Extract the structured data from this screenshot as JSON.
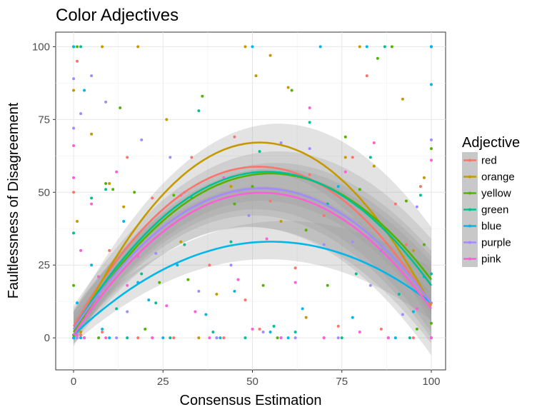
{
  "chart_data": {
    "type": "scatter",
    "title": "Color Adjectives",
    "xlabel": "Consensus Estimation",
    "ylabel": "Faultlessness of Disagreement",
    "xlim": [
      -5,
      104
    ],
    "ylim": [
      -11,
      105
    ],
    "xticks": [
      0,
      25,
      50,
      75,
      100
    ],
    "yticks": [
      0,
      25,
      50,
      75,
      100
    ],
    "grid": true,
    "legend": {
      "title": "Adjective",
      "position": "right"
    },
    "series": [
      {
        "name": "red",
        "color": "#F8766D",
        "fit": {
          "a": 4,
          "b": 2.12,
          "c": -0.0205
        },
        "band": [
          [
            0,
            0,
            10
          ],
          [
            50,
            38,
            56
          ],
          [
            100,
            -2,
            26
          ]
        ],
        "points": [
          [
            0,
            0
          ],
          [
            0,
            50
          ],
          [
            1,
            95
          ],
          [
            2,
            1
          ],
          [
            3,
            0
          ],
          [
            5,
            10
          ],
          [
            8,
            2
          ],
          [
            10,
            30
          ],
          [
            15,
            62
          ],
          [
            18,
            0
          ],
          [
            22,
            48
          ],
          [
            28,
            0
          ],
          [
            33,
            62
          ],
          [
            38,
            25
          ],
          [
            42,
            0
          ],
          [
            45,
            69
          ],
          [
            48,
            13
          ],
          [
            52,
            3
          ],
          [
            55,
            47
          ],
          [
            58,
            0
          ],
          [
            62,
            24
          ],
          [
            66,
            56
          ],
          [
            70,
            42
          ],
          [
            74,
            4
          ],
          [
            78,
            62
          ],
          [
            82,
            90
          ],
          [
            86,
            3
          ],
          [
            90,
            46
          ],
          [
            93,
            32
          ],
          [
            95,
            0
          ],
          [
            97,
            52
          ],
          [
            100,
            100
          ],
          [
            100,
            12
          ],
          [
            100,
            0
          ]
        ]
      },
      {
        "name": "orange",
        "color": "#C49A00",
        "fit": {
          "a": 1,
          "b": 2.54,
          "c": -0.0244
        },
        "band": [
          [
            0,
            -3,
            9
          ],
          [
            52,
            57,
            73
          ],
          [
            100,
            5,
            38
          ]
        ],
        "points": [
          [
            0,
            100
          ],
          [
            0,
            85
          ],
          [
            1,
            40
          ],
          [
            2,
            2
          ],
          [
            3,
            0
          ],
          [
            5,
            70
          ],
          [
            8,
            100
          ],
          [
            10,
            53
          ],
          [
            14,
            45
          ],
          [
            18,
            100
          ],
          [
            22,
            0
          ],
          [
            26,
            75
          ],
          [
            30,
            33
          ],
          [
            35,
            0
          ],
          [
            40,
            15
          ],
          [
            44,
            52
          ],
          [
            48,
            100
          ],
          [
            51,
            90
          ],
          [
            55,
            97
          ],
          [
            58,
            40
          ],
          [
            60,
            86
          ],
          [
            65,
            7
          ],
          [
            70,
            0
          ],
          [
            76,
            62
          ],
          [
            80,
            100
          ],
          [
            84,
            59
          ],
          [
            88,
            0
          ],
          [
            92,
            82
          ],
          [
            95,
            30
          ],
          [
            98,
            55
          ],
          [
            100,
            100
          ],
          [
            100,
            0
          ]
        ]
      },
      {
        "name": "yellow",
        "color": "#53B400",
        "fit": {
          "a": 2,
          "b": 1.98,
          "c": -0.018
        },
        "band": [
          [
            0,
            -1,
            11
          ],
          [
            55,
            47,
            64
          ],
          [
            100,
            8,
            34
          ]
        ],
        "points": [
          [
            0,
            1
          ],
          [
            0,
            18
          ],
          [
            1,
            100
          ],
          [
            2,
            0
          ],
          [
            3,
            7
          ],
          [
            5,
            13
          ],
          [
            7,
            0
          ],
          [
            9,
            53
          ],
          [
            11,
            51
          ],
          [
            13,
            79
          ],
          [
            17,
            50
          ],
          [
            20,
            3
          ],
          [
            24,
            19
          ],
          [
            28,
            49
          ],
          [
            32,
            20
          ],
          [
            36,
            83
          ],
          [
            40,
            0
          ],
          [
            45,
            46
          ],
          [
            50,
            52
          ],
          [
            53,
            18
          ],
          [
            57,
            0
          ],
          [
            61,
            85
          ],
          [
            65,
            37
          ],
          [
            71,
            18
          ],
          [
            76,
            69
          ],
          [
            80,
            51
          ],
          [
            85,
            96
          ],
          [
            89,
            100
          ],
          [
            93,
            47
          ],
          [
            96,
            3
          ],
          [
            98,
            32
          ],
          [
            100,
            65
          ],
          [
            100,
            5
          ]
        ]
      },
      {
        "name": "green",
        "color": "#00C094",
        "fit": {
          "a": 3,
          "b": 2.0,
          "c": -0.0185
        },
        "band": [
          [
            0,
            -1,
            9
          ],
          [
            54,
            44,
            60
          ],
          [
            100,
            2,
            30
          ]
        ],
        "points": [
          [
            0,
            0
          ],
          [
            0,
            36
          ],
          [
            1,
            5
          ],
          [
            2,
            100
          ],
          [
            3,
            0
          ],
          [
            5,
            48
          ],
          [
            7,
            21
          ],
          [
            9,
            51
          ],
          [
            12,
            10
          ],
          [
            15,
            0
          ],
          [
            19,
            22
          ],
          [
            23,
            12
          ],
          [
            27,
            0
          ],
          [
            31,
            32
          ],
          [
            35,
            78
          ],
          [
            39,
            2
          ],
          [
            44,
            33
          ],
          [
            48,
            0
          ],
          [
            52,
            64
          ],
          [
            56,
            4
          ],
          [
            62,
            2
          ],
          [
            66,
            74
          ],
          [
            71,
            46
          ],
          [
            75,
            0
          ],
          [
            79,
            22
          ],
          [
            83,
            62
          ],
          [
            87,
            100
          ],
          [
            91,
            15
          ],
          [
            94,
            0
          ],
          [
            97,
            49
          ],
          [
            100,
            100
          ],
          [
            100,
            22
          ]
        ]
      },
      {
        "name": "blue",
        "color": "#00B6EB",
        "fit": {
          "a": 1,
          "b": 1.16,
          "c": -0.0105
        },
        "band": [
          [
            0,
            -2,
            6
          ],
          [
            55,
            27,
            40
          ],
          [
            100,
            6,
            24
          ]
        ],
        "points": [
          [
            0,
            0
          ],
          [
            0,
            100
          ],
          [
            1,
            12
          ],
          [
            2,
            0
          ],
          [
            3,
            85
          ],
          [
            5,
            25
          ],
          [
            8,
            3
          ],
          [
            10,
            0
          ],
          [
            14,
            40
          ],
          [
            18,
            19
          ],
          [
            21,
            13
          ],
          [
            25,
            0
          ],
          [
            29,
            25
          ],
          [
            33,
            48
          ],
          [
            37,
            8
          ],
          [
            41,
            0
          ],
          [
            45,
            16
          ],
          [
            50,
            100
          ],
          [
            55,
            2
          ],
          [
            60,
            0
          ],
          [
            64,
            10
          ],
          [
            69,
            100
          ],
          [
            74,
            52
          ],
          [
            78,
            7
          ],
          [
            82,
            100
          ],
          [
            86,
            30
          ],
          [
            90,
            0
          ],
          [
            95,
            9
          ],
          [
            98,
            21
          ],
          [
            100,
            100
          ],
          [
            100,
            87
          ],
          [
            100,
            0
          ]
        ]
      },
      {
        "name": "purple",
        "color": "#A58AFF",
        "fit": {
          "a": 3,
          "b": 1.84,
          "c": -0.0175
        },
        "band": [
          [
            0,
            -1,
            9
          ],
          [
            52,
            42,
            58
          ],
          [
            100,
            0,
            28
          ]
        ],
        "points": [
          [
            0,
            89
          ],
          [
            0,
            72
          ],
          [
            1,
            0
          ],
          [
            2,
            77
          ],
          [
            3,
            0
          ],
          [
            5,
            90
          ],
          [
            7,
            14
          ],
          [
            9,
            81
          ],
          [
            12,
            0
          ],
          [
            15,
            9
          ],
          [
            19,
            68
          ],
          [
            23,
            29
          ],
          [
            27,
            62
          ],
          [
            31,
            50
          ],
          [
            35,
            16
          ],
          [
            40,
            0
          ],
          [
            44,
            25
          ],
          [
            49,
            42
          ],
          [
            53,
            2
          ],
          [
            58,
            67
          ],
          [
            62,
            0
          ],
          [
            66,
            65
          ],
          [
            70,
            32
          ],
          [
            74,
            0
          ],
          [
            78,
            33
          ],
          [
            83,
            18
          ],
          [
            88,
            0
          ],
          [
            92,
            8
          ],
          [
            96,
            45
          ],
          [
            100,
            68
          ],
          [
            100,
            0
          ]
        ]
      },
      {
        "name": "pink",
        "color": "#FB61D7",
        "fit": {
          "a": 1,
          "b": 1.86,
          "c": -0.0177
        },
        "band": [
          [
            0,
            -2,
            7
          ],
          [
            52,
            38,
            52
          ],
          [
            100,
            -6,
            15
          ]
        ],
        "points": [
          [
            0,
            66
          ],
          [
            0,
            55
          ],
          [
            1,
            1
          ],
          [
            2,
            30
          ],
          [
            3,
            0
          ],
          [
            5,
            46
          ],
          [
            7,
            21
          ],
          [
            9,
            0
          ],
          [
            12,
            57
          ],
          [
            15,
            18
          ],
          [
            18,
            28
          ],
          [
            22,
            0
          ],
          [
            26,
            11
          ],
          [
            30,
            49
          ],
          [
            34,
            9
          ],
          [
            38,
            0
          ],
          [
            42,
            55
          ],
          [
            46,
            20
          ],
          [
            50,
            3
          ],
          [
            54,
            34
          ],
          [
            58,
            0
          ],
          [
            62,
            19
          ],
          [
            66,
            79
          ],
          [
            70,
            0
          ],
          [
            76,
            57
          ],
          [
            80,
            2
          ],
          [
            84,
            67
          ],
          [
            88,
            0
          ],
          [
            92,
            28
          ],
          [
            96,
            10
          ],
          [
            100,
            61
          ],
          [
            100,
            0
          ]
        ]
      }
    ]
  }
}
